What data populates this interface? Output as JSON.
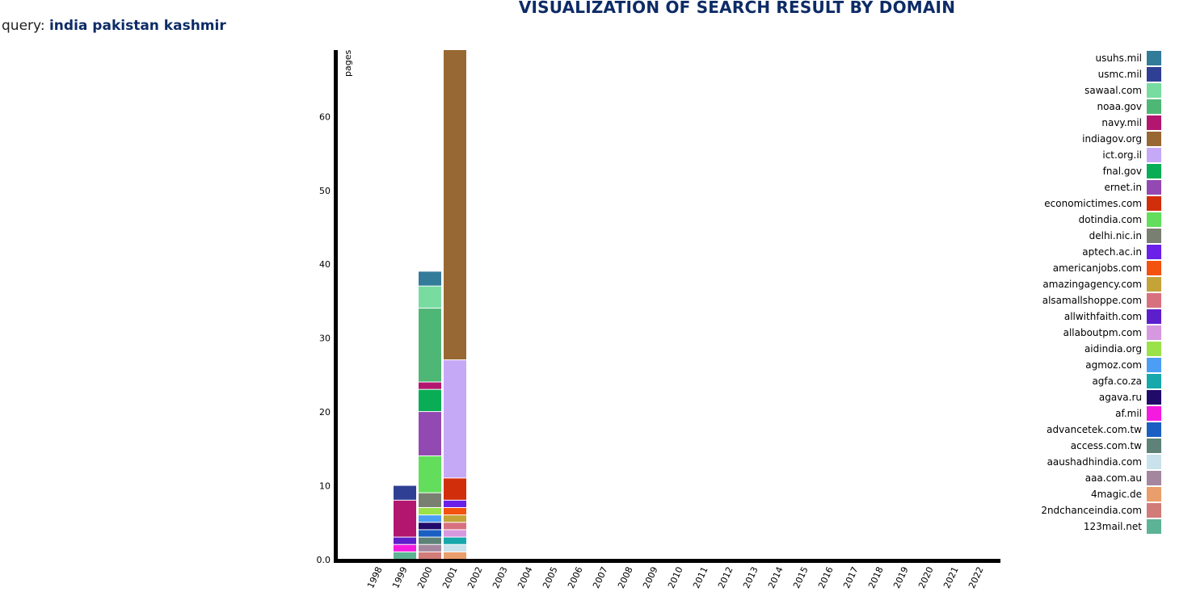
{
  "header": {
    "title": "VISUALIZATION OF SEARCH RESULT BY DOMAIN",
    "query_label": "query:",
    "query_value": "india pakistan kashmir"
  },
  "chart_data": {
    "type": "bar",
    "stacked": true,
    "title": "VISUALIZATION OF SEARCH RESULT BY DOMAIN",
    "xlabel": "",
    "ylabel": "pages",
    "ylim": [
      0,
      69
    ],
    "yticks": [
      0.0,
      10,
      20,
      30,
      40,
      50,
      60
    ],
    "ytick_labels": [
      "0.0",
      "10",
      "20",
      "30",
      "40",
      "50",
      "60"
    ],
    "grid": false,
    "legend_position": "right",
    "categories": [
      "1998",
      "1999",
      "2000",
      "2001",
      "2002",
      "2003",
      "2004",
      "2005",
      "2006",
      "2007",
      "2008",
      "2009",
      "2010",
      "2011",
      "2012",
      "2013",
      "2014",
      "2015",
      "2016",
      "2017",
      "2018",
      "2019",
      "2020",
      "2021",
      "2022"
    ],
    "series": [
      {
        "name": "123mail.net",
        "color": "#5db396",
        "values": [
          0,
          1,
          0,
          0,
          0,
          0,
          0,
          0,
          0,
          0,
          0,
          0,
          0,
          0,
          0,
          0,
          0,
          0,
          0,
          0,
          0,
          0,
          0,
          0,
          0
        ]
      },
      {
        "name": "2ndchanceindia.com",
        "color": "#d17c78",
        "values": [
          0,
          0,
          1,
          0,
          0,
          0,
          0,
          0,
          0,
          0,
          0,
          0,
          0,
          0,
          0,
          0,
          0,
          0,
          0,
          0,
          0,
          0,
          0,
          0,
          0
        ]
      },
      {
        "name": "4magic.de",
        "color": "#ea9e6b",
        "values": [
          0,
          0,
          0,
          1,
          0,
          0,
          0,
          0,
          0,
          0,
          0,
          0,
          0,
          0,
          0,
          0,
          0,
          0,
          0,
          0,
          0,
          0,
          0,
          0,
          0
        ]
      },
      {
        "name": "aaa.com.au",
        "color": "#a4879e",
        "values": [
          0,
          0,
          1,
          0,
          0,
          0,
          0,
          0,
          0,
          0,
          0,
          0,
          0,
          0,
          0,
          0,
          0,
          0,
          0,
          0,
          0,
          0,
          0,
          0,
          0
        ]
      },
      {
        "name": "aaushadhindia.com",
        "color": "#c9e2ec",
        "values": [
          0,
          0,
          0,
          1,
          0,
          0,
          0,
          0,
          0,
          0,
          0,
          0,
          0,
          0,
          0,
          0,
          0,
          0,
          0,
          0,
          0,
          0,
          0,
          0,
          0
        ]
      },
      {
        "name": "access.com.tw",
        "color": "#5e8277",
        "values": [
          0,
          0,
          1,
          0,
          0,
          0,
          0,
          0,
          0,
          0,
          0,
          0,
          0,
          0,
          0,
          0,
          0,
          0,
          0,
          0,
          0,
          0,
          0,
          0,
          0
        ]
      },
      {
        "name": "advancetek.com.tw",
        "color": "#1b5fc3",
        "values": [
          0,
          0,
          1,
          0,
          0,
          0,
          0,
          0,
          0,
          0,
          0,
          0,
          0,
          0,
          0,
          0,
          0,
          0,
          0,
          0,
          0,
          0,
          0,
          0,
          0
        ]
      },
      {
        "name": "af.mil",
        "color": "#f41ae0",
        "values": [
          0,
          1,
          0,
          0,
          0,
          0,
          0,
          0,
          0,
          0,
          0,
          0,
          0,
          0,
          0,
          0,
          0,
          0,
          0,
          0,
          0,
          0,
          0,
          0,
          0
        ]
      },
      {
        "name": "agava.ru",
        "color": "#200b6a",
        "values": [
          0,
          0,
          1,
          0,
          0,
          0,
          0,
          0,
          0,
          0,
          0,
          0,
          0,
          0,
          0,
          0,
          0,
          0,
          0,
          0,
          0,
          0,
          0,
          0,
          0
        ]
      },
      {
        "name": "agfa.co.za",
        "color": "#16a8ab",
        "values": [
          0,
          0,
          0,
          1,
          0,
          0,
          0,
          0,
          0,
          0,
          0,
          0,
          0,
          0,
          0,
          0,
          0,
          0,
          0,
          0,
          0,
          0,
          0,
          0,
          0
        ]
      },
      {
        "name": "agmoz.com",
        "color": "#4c9ef4",
        "values": [
          0,
          0,
          1,
          0,
          0,
          0,
          0,
          0,
          0,
          0,
          0,
          0,
          0,
          0,
          0,
          0,
          0,
          0,
          0,
          0,
          0,
          0,
          0,
          0,
          0
        ]
      },
      {
        "name": "aidindia.org",
        "color": "#9be14a",
        "values": [
          0,
          0,
          1,
          0,
          0,
          0,
          0,
          0,
          0,
          0,
          0,
          0,
          0,
          0,
          0,
          0,
          0,
          0,
          0,
          0,
          0,
          0,
          0,
          0,
          0
        ]
      },
      {
        "name": "allaboutpm.com",
        "color": "#d699e0",
        "values": [
          0,
          0,
          0,
          1,
          0,
          0,
          0,
          0,
          0,
          0,
          0,
          0,
          0,
          0,
          0,
          0,
          0,
          0,
          0,
          0,
          0,
          0,
          0,
          0,
          0
        ]
      },
      {
        "name": "allwithfaith.com",
        "color": "#5d1fcb",
        "values": [
          0,
          1,
          0,
          0,
          0,
          0,
          0,
          0,
          0,
          0,
          0,
          0,
          0,
          0,
          0,
          0,
          0,
          0,
          0,
          0,
          0,
          0,
          0,
          0,
          0
        ]
      },
      {
        "name": "alsamallshoppe.com",
        "color": "#d8717f",
        "values": [
          0,
          0,
          0,
          1,
          0,
          0,
          0,
          0,
          0,
          0,
          0,
          0,
          0,
          0,
          0,
          0,
          0,
          0,
          0,
          0,
          0,
          0,
          0,
          0,
          0
        ]
      },
      {
        "name": "amazingagency.com",
        "color": "#c4a339",
        "values": [
          0,
          0,
          0,
          1,
          0,
          0,
          0,
          0,
          0,
          0,
          0,
          0,
          0,
          0,
          0,
          0,
          0,
          0,
          0,
          0,
          0,
          0,
          0,
          0,
          0
        ]
      },
      {
        "name": "americanjobs.com",
        "color": "#f3520f",
        "values": [
          0,
          0,
          0,
          1,
          0,
          0,
          0,
          0,
          0,
          0,
          0,
          0,
          0,
          0,
          0,
          0,
          0,
          0,
          0,
          0,
          0,
          0,
          0,
          0,
          0
        ]
      },
      {
        "name": "aptech.ac.in",
        "color": "#6a20e8",
        "values": [
          0,
          0,
          0,
          1,
          0,
          0,
          0,
          0,
          0,
          0,
          0,
          0,
          0,
          0,
          0,
          0,
          0,
          0,
          0,
          0,
          0,
          0,
          0,
          0,
          0
        ]
      },
      {
        "name": "delhi.nic.in",
        "color": "#7a8071",
        "values": [
          0,
          0,
          2,
          0,
          0,
          0,
          0,
          0,
          0,
          0,
          0,
          0,
          0,
          0,
          0,
          0,
          0,
          0,
          0,
          0,
          0,
          0,
          0,
          0,
          0
        ]
      },
      {
        "name": "dotindia.com",
        "color": "#63dd5c",
        "values": [
          0,
          0,
          5,
          0,
          0,
          0,
          0,
          0,
          0,
          0,
          0,
          0,
          0,
          0,
          0,
          0,
          0,
          0,
          0,
          0,
          0,
          0,
          0,
          0,
          0
        ]
      },
      {
        "name": "economictimes.com",
        "color": "#d12e0c",
        "values": [
          0,
          0,
          0,
          3,
          0,
          0,
          0,
          0,
          0,
          0,
          0,
          0,
          0,
          0,
          0,
          0,
          0,
          0,
          0,
          0,
          0,
          0,
          0,
          0,
          0
        ]
      },
      {
        "name": "ernet.in",
        "color": "#9249b2",
        "values": [
          0,
          0,
          6,
          0,
          0,
          0,
          0,
          0,
          0,
          0,
          0,
          0,
          0,
          0,
          0,
          0,
          0,
          0,
          0,
          0,
          0,
          0,
          0,
          0,
          0
        ]
      },
      {
        "name": "fnal.gov",
        "color": "#08ad55",
        "values": [
          0,
          0,
          3,
          0,
          0,
          0,
          0,
          0,
          0,
          0,
          0,
          0,
          0,
          0,
          0,
          0,
          0,
          0,
          0,
          0,
          0,
          0,
          0,
          0,
          0
        ]
      },
      {
        "name": "ict.org.il",
        "color": "#c6a9f6",
        "values": [
          0,
          0,
          0,
          16,
          0,
          0,
          0,
          0,
          0,
          0,
          0,
          0,
          0,
          0,
          0,
          0,
          0,
          0,
          0,
          0,
          0,
          0,
          0,
          0,
          0
        ]
      },
      {
        "name": "indiagov.org",
        "color": "#986834",
        "values": [
          0,
          0,
          0,
          42,
          0,
          0,
          0,
          0,
          0,
          0,
          0,
          0,
          0,
          0,
          0,
          0,
          0,
          0,
          0,
          0,
          0,
          0,
          0,
          0,
          0
        ]
      },
      {
        "name": "navy.mil",
        "color": "#b3166f",
        "values": [
          0,
          5,
          1,
          0,
          0,
          0,
          0,
          0,
          0,
          0,
          0,
          0,
          0,
          0,
          0,
          0,
          0,
          0,
          0,
          0,
          0,
          0,
          0,
          0,
          0
        ]
      },
      {
        "name": "noaa.gov",
        "color": "#4fb775",
        "values": [
          0,
          0,
          10,
          0,
          0,
          0,
          0,
          0,
          0,
          0,
          0,
          0,
          0,
          0,
          0,
          0,
          0,
          0,
          0,
          0,
          0,
          0,
          0,
          0,
          0
        ]
      },
      {
        "name": "sawaal.com",
        "color": "#78dca0",
        "values": [
          0,
          0,
          3,
          0,
          0,
          0,
          0,
          0,
          0,
          0,
          0,
          0,
          0,
          0,
          0,
          0,
          0,
          0,
          0,
          0,
          0,
          0,
          0,
          0,
          0
        ]
      },
      {
        "name": "usmc.mil",
        "color": "#2f3f93",
        "values": [
          0,
          2,
          0,
          0,
          0,
          0,
          0,
          0,
          0,
          0,
          0,
          0,
          0,
          0,
          0,
          0,
          0,
          0,
          0,
          0,
          0,
          0,
          0,
          0,
          0
        ]
      },
      {
        "name": "usuhs.mil",
        "color": "#327b99",
        "values": [
          0,
          0,
          2,
          0,
          0,
          0,
          0,
          0,
          0,
          0,
          0,
          0,
          0,
          0,
          0,
          0,
          0,
          0,
          0,
          0,
          0,
          0,
          0,
          0,
          0
        ]
      }
    ]
  }
}
